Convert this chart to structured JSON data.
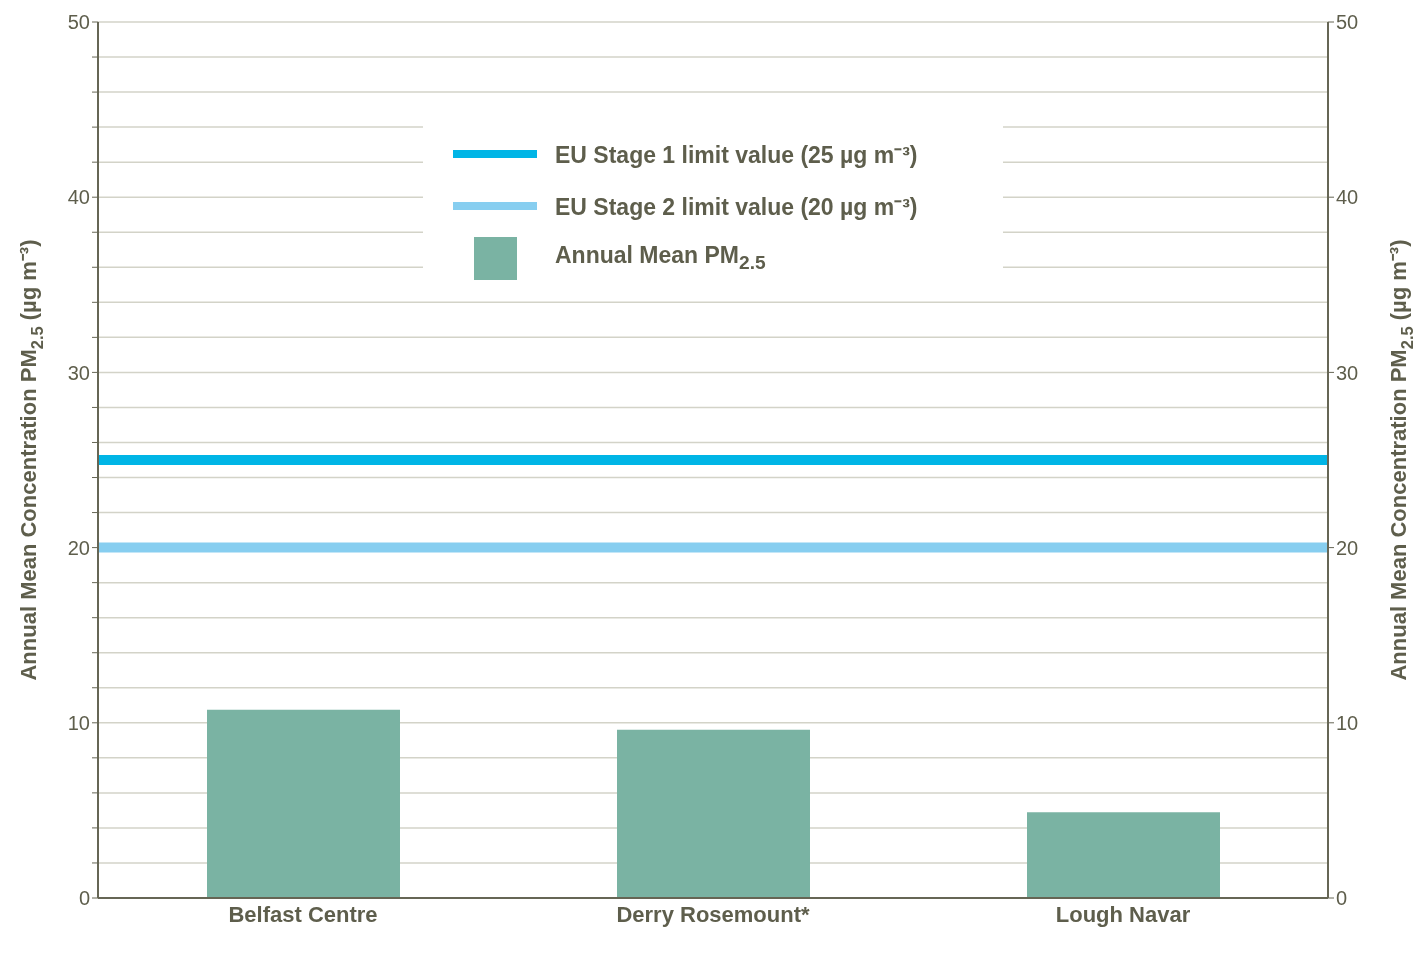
{
  "chart_data": {
    "type": "bar",
    "categories": [
      "Belfast Centre",
      "Derry Rosemount*",
      "Lough Navar"
    ],
    "series": [
      {
        "name": "Annual Mean PM$_{2.5}$",
        "color": "#7ab3a3",
        "values": [
          10.75,
          9.6,
          4.9
        ]
      }
    ],
    "ylabel": "Annual Mean Concentration PM$_{2.5}$ (µg m⁻³)",
    "y2label": "Annual Mean Concentration PM$_{2.5}$ (µg m⁻³)",
    "ylim": [
      0,
      50
    ],
    "yticks": [
      0,
      {
        "value": 2,
        "label": null
      },
      {
        "value": 4,
        "label": null
      },
      {
        "value": 6,
        "label": null
      },
      {
        "value": 8,
        "label": null
      },
      10,
      {
        "value": 12,
        "label": null
      },
      {
        "value": 14,
        "label": null
      },
      {
        "value": 16,
        "label": null
      },
      {
        "value": 18,
        "label": null
      },
      20,
      {
        "value": 22,
        "label": null
      },
      {
        "value": 24,
        "label": null
      },
      {
        "value": 26,
        "label": null
      },
      {
        "value": 28,
        "label": null
      },
      30,
      {
        "value": 32,
        "label": null
      },
      {
        "value": 34,
        "label": null
      },
      {
        "value": 36,
        "label": null
      },
      {
        "value": 38,
        "label": null
      },
      40,
      {
        "value": 42,
        "label": null
      },
      {
        "value": 44,
        "label": null
      },
      {
        "value": 46,
        "label": null
      },
      {
        "value": 48,
        "label": null
      },
      50
    ],
    "y2lim": [
      0,
      50
    ],
    "y2ticks": [
      0,
      10,
      20,
      30,
      40,
      50
    ],
    "ref_lines": [
      {
        "axis": "y",
        "value": 25,
        "label": "EU Stage 1 limit value (25 µg m⁻³)",
        "color": "#00b5e6"
      },
      {
        "axis": "y",
        "value": 20,
        "label": "EU Stage 2 limit value (20 µg m⁻³)",
        "color": "#87cef0"
      }
    ],
    "grid": "y",
    "legend": "top"
  }
}
